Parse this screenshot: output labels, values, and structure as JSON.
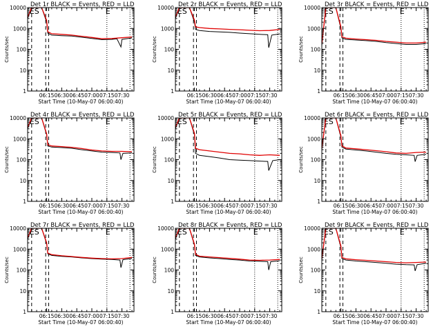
{
  "chart_data": {
    "type": "line",
    "time_ticks": [
      "06:15",
      "06:30",
      "06:45",
      "07:00",
      "07:15",
      "07:30"
    ],
    "time_ticks_minutes": [
      375,
      390,
      405,
      420,
      435,
      450
    ],
    "xlim_minutes": [
      356,
      462
    ],
    "ylim": [
      1,
      10000
    ],
    "ytick_labels": [
      "1",
      "10",
      "100",
      "1000",
      "10000"
    ],
    "yscale": "log",
    "ylabel": "Counts/sec",
    "xlabel": "Start Time (10-May-07 06:00:40)",
    "series_names": [
      "Events",
      "LLD"
    ],
    "series_colors": {
      "Events": "#000000",
      "LLD": "#e00000"
    },
    "vertical_markers": {
      "dashed_minutes": [
        360,
        374,
        377
      ],
      "dotted_minutes": [
        435,
        458
      ]
    },
    "panel_time_shift_minutes": 0,
    "panels": [
      {
        "id": "1r",
        "title": "Det 1r BLACK = Events, RED = LLD",
        "legend_marks": [
          "ES",
          "E"
        ],
        "events": [
          [
            356,
            3000
          ],
          [
            360,
            10000
          ],
          [
            370,
            10000
          ],
          [
            375,
            2000
          ],
          [
            376,
            600
          ],
          [
            380,
            480
          ],
          [
            390,
            450
          ],
          [
            400,
            430
          ],
          [
            410,
            380
          ],
          [
            420,
            330
          ],
          [
            430,
            290
          ],
          [
            440,
            300
          ],
          [
            445,
            320
          ],
          [
            449,
            130
          ],
          [
            450,
            300
          ],
          [
            460,
            350
          ]
        ],
        "lld": [
          [
            356,
            3500
          ],
          [
            360,
            10000
          ],
          [
            370,
            10000
          ],
          [
            375,
            2400
          ],
          [
            376,
            700
          ],
          [
            380,
            560
          ],
          [
            390,
            520
          ],
          [
            400,
            480
          ],
          [
            410,
            420
          ],
          [
            420,
            370
          ],
          [
            430,
            320
          ],
          [
            440,
            330
          ],
          [
            450,
            360
          ],
          [
            460,
            390
          ]
        ]
      },
      {
        "id": "2r",
        "title": "Det 2r BLACK = Events, RED = LLD",
        "legend_marks": [
          "ES",
          "E"
        ],
        "events": [
          [
            356,
            3000
          ],
          [
            360,
            10000
          ],
          [
            370,
            10000
          ],
          [
            375,
            2000
          ],
          [
            376,
            900
          ],
          [
            380,
            800
          ],
          [
            390,
            720
          ],
          [
            400,
            680
          ],
          [
            410,
            650
          ],
          [
            420,
            600
          ],
          [
            430,
            560
          ],
          [
            440,
            520
          ],
          [
            448,
            500
          ],
          [
            449,
            120
          ],
          [
            452,
            480
          ],
          [
            460,
            550
          ]
        ],
        "lld": [
          [
            356,
            3500
          ],
          [
            360,
            10000
          ],
          [
            370,
            10000
          ],
          [
            375,
            2500
          ],
          [
            376,
            1200
          ],
          [
            380,
            1100
          ],
          [
            390,
            1000
          ],
          [
            400,
            950
          ],
          [
            410,
            900
          ],
          [
            420,
            870
          ],
          [
            430,
            820
          ],
          [
            440,
            780
          ],
          [
            450,
            800
          ],
          [
            460,
            900
          ]
        ]
      },
      {
        "id": "3r",
        "title": "Det 3r BLACK = Events, RED = LLD",
        "legend_marks": [
          "ES",
          "E"
        ],
        "events": [
          [
            356,
            150
          ],
          [
            360,
            10000
          ],
          [
            370,
            10000
          ],
          [
            375,
            1000
          ],
          [
            376,
            350
          ],
          [
            380,
            300
          ],
          [
            390,
            280
          ],
          [
            400,
            260
          ],
          [
            410,
            240
          ],
          [
            420,
            210
          ],
          [
            430,
            190
          ],
          [
            440,
            170
          ],
          [
            450,
            170
          ],
          [
            460,
            190
          ]
        ],
        "lld": [
          [
            356,
            180
          ],
          [
            360,
            10000
          ],
          [
            370,
            10000
          ],
          [
            375,
            1200
          ],
          [
            376,
            400
          ],
          [
            380,
            340
          ],
          [
            390,
            310
          ],
          [
            400,
            290
          ],
          [
            410,
            270
          ],
          [
            420,
            240
          ],
          [
            430,
            220
          ],
          [
            440,
            200
          ],
          [
            450,
            200
          ],
          [
            460,
            220
          ]
        ]
      },
      {
        "id": "4r",
        "title": "Det 4r BLACK = Events, RED = LLD",
        "legend_marks": [
          "ES",
          "E"
        ],
        "events": [
          [
            356,
            3000
          ],
          [
            360,
            10000
          ],
          [
            370,
            10000
          ],
          [
            375,
            1500
          ],
          [
            376,
            450
          ],
          [
            380,
            400
          ],
          [
            390,
            380
          ],
          [
            400,
            350
          ],
          [
            410,
            300
          ],
          [
            420,
            260
          ],
          [
            430,
            230
          ],
          [
            440,
            220
          ],
          [
            448,
            210
          ],
          [
            449,
            100
          ],
          [
            451,
            200
          ],
          [
            460,
            210
          ]
        ],
        "lld": [
          [
            356,
            3500
          ],
          [
            360,
            10000
          ],
          [
            370,
            10000
          ],
          [
            375,
            1700
          ],
          [
            376,
            520
          ],
          [
            380,
            450
          ],
          [
            390,
            420
          ],
          [
            400,
            390
          ],
          [
            410,
            340
          ],
          [
            420,
            290
          ],
          [
            430,
            260
          ],
          [
            440,
            250
          ],
          [
            450,
            250
          ],
          [
            460,
            240
          ]
        ]
      },
      {
        "id": "5r",
        "title": "Det 5r BLACK = Events, RED = LLD",
        "legend_marks": [
          "ES",
          "E"
        ],
        "events": [
          [
            356,
            3000
          ],
          [
            360,
            10000
          ],
          [
            370,
            10000
          ],
          [
            375,
            1500
          ],
          [
            376,
            200
          ],
          [
            380,
            160
          ],
          [
            390,
            140
          ],
          [
            400,
            120
          ],
          [
            410,
            100
          ],
          [
            420,
            95
          ],
          [
            430,
            90
          ],
          [
            440,
            85
          ],
          [
            448,
            82
          ],
          [
            449,
            30
          ],
          [
            453,
            90
          ],
          [
            460,
            100
          ]
        ],
        "lld": [
          [
            356,
            3500
          ],
          [
            360,
            10000
          ],
          [
            370,
            10000
          ],
          [
            375,
            1800
          ],
          [
            376,
            350
          ],
          [
            380,
            300
          ],
          [
            390,
            260
          ],
          [
            400,
            230
          ],
          [
            410,
            200
          ],
          [
            420,
            190
          ],
          [
            430,
            170
          ],
          [
            440,
            160
          ],
          [
            450,
            170
          ],
          [
            460,
            160
          ]
        ]
      },
      {
        "id": "6r",
        "title": "Det 6r BLACK = Events, RED = LLD",
        "legend_marks": [
          "ES",
          "E"
        ],
        "events": [
          [
            356,
            300
          ],
          [
            360,
            10000
          ],
          [
            370,
            10000
          ],
          [
            375,
            1200
          ],
          [
            376,
            400
          ],
          [
            380,
            320
          ],
          [
            390,
            290
          ],
          [
            400,
            260
          ],
          [
            410,
            230
          ],
          [
            420,
            200
          ],
          [
            430,
            180
          ],
          [
            440,
            170
          ],
          [
            448,
            160
          ],
          [
            449,
            80
          ],
          [
            451,
            160
          ],
          [
            460,
            180
          ]
        ],
        "lld": [
          [
            356,
            350
          ],
          [
            360,
            10000
          ],
          [
            370,
            10000
          ],
          [
            375,
            1400
          ],
          [
            376,
            460
          ],
          [
            380,
            360
          ],
          [
            390,
            330
          ],
          [
            400,
            300
          ],
          [
            410,
            270
          ],
          [
            420,
            240
          ],
          [
            430,
            210
          ],
          [
            440,
            200
          ],
          [
            450,
            220
          ],
          [
            460,
            230
          ]
        ]
      },
      {
        "id": "7r",
        "title": "Det 7r BLACK = Events, RED = LLD",
        "legend_marks": [
          "ES",
          "E"
        ],
        "events": [
          [
            356,
            3000
          ],
          [
            360,
            10000
          ],
          [
            370,
            10000
          ],
          [
            375,
            1800
          ],
          [
            376,
            600
          ],
          [
            380,
            500
          ],
          [
            390,
            450
          ],
          [
            400,
            420
          ],
          [
            410,
            380
          ],
          [
            420,
            350
          ],
          [
            430,
            330
          ],
          [
            440,
            320
          ],
          [
            448,
            300
          ],
          [
            449,
            130
          ],
          [
            451,
            310
          ],
          [
            460,
            360
          ]
        ],
        "lld": [
          [
            356,
            3500
          ],
          [
            360,
            10000
          ],
          [
            370,
            10000
          ],
          [
            375,
            2000
          ],
          [
            376,
            650
          ],
          [
            380,
            540
          ],
          [
            390,
            480
          ],
          [
            400,
            440
          ],
          [
            410,
            400
          ],
          [
            420,
            370
          ],
          [
            430,
            350
          ],
          [
            440,
            340
          ],
          [
            450,
            350
          ],
          [
            460,
            400
          ]
        ]
      },
      {
        "id": "8r",
        "title": "Det 8r BLACK = Events, RED = LLD",
        "legend_marks": [
          "ES",
          "E"
        ],
        "events": [
          [
            356,
            3000
          ],
          [
            360,
            10000
          ],
          [
            370,
            10000
          ],
          [
            375,
            1500
          ],
          [
            376,
            500
          ],
          [
            380,
            420
          ],
          [
            390,
            380
          ],
          [
            400,
            350
          ],
          [
            410,
            320
          ],
          [
            420,
            300
          ],
          [
            430,
            270
          ],
          [
            440,
            260
          ],
          [
            448,
            250
          ],
          [
            449,
            100
          ],
          [
            451,
            250
          ],
          [
            460,
            280
          ]
        ],
        "lld": [
          [
            356,
            3500
          ],
          [
            360,
            10000
          ],
          [
            370,
            10000
          ],
          [
            375,
            1700
          ],
          [
            376,
            560
          ],
          [
            380,
            460
          ],
          [
            390,
            420
          ],
          [
            400,
            390
          ],
          [
            410,
            360
          ],
          [
            420,
            330
          ],
          [
            430,
            300
          ],
          [
            440,
            290
          ],
          [
            450,
            300
          ],
          [
            460,
            320
          ]
        ]
      },
      {
        "id": "9r",
        "title": "Det 9r BLACK = Events, RED = LLD",
        "legend_marks": [
          "ES",
          "E"
        ],
        "events": [
          [
            356,
            300
          ],
          [
            360,
            10000
          ],
          [
            370,
            10000
          ],
          [
            375,
            1200
          ],
          [
            376,
            350
          ],
          [
            380,
            300
          ],
          [
            390,
            270
          ],
          [
            400,
            250
          ],
          [
            410,
            230
          ],
          [
            420,
            210
          ],
          [
            430,
            190
          ],
          [
            440,
            180
          ],
          [
            448,
            175
          ],
          [
            449,
            90
          ],
          [
            451,
            180
          ],
          [
            460,
            210
          ]
        ],
        "lld": [
          [
            356,
            350
          ],
          [
            360,
            10000
          ],
          [
            370,
            10000
          ],
          [
            375,
            1400
          ],
          [
            376,
            400
          ],
          [
            380,
            340
          ],
          [
            390,
            310
          ],
          [
            400,
            290
          ],
          [
            410,
            270
          ],
          [
            420,
            250
          ],
          [
            430,
            230
          ],
          [
            440,
            220
          ],
          [
            450,
            230
          ],
          [
            460,
            240
          ]
        ]
      }
    ]
  }
}
